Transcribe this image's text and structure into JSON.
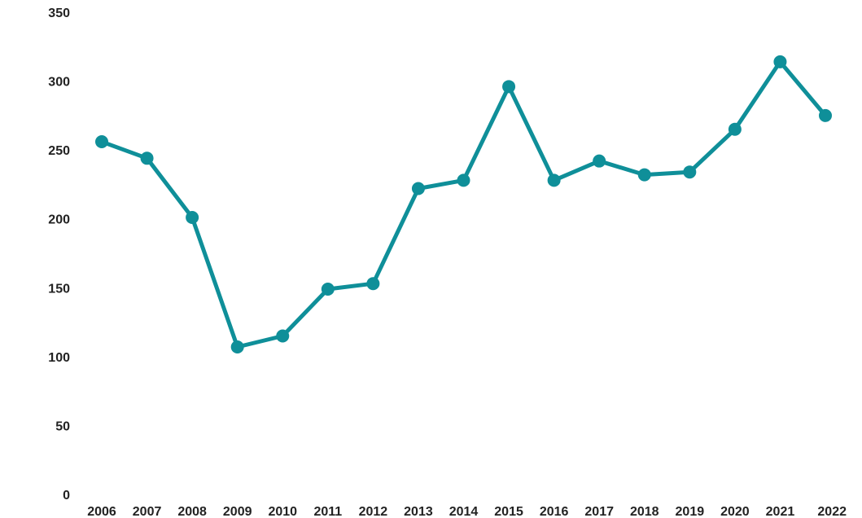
{
  "chart_data": {
    "type": "line",
    "title": "",
    "xlabel": "",
    "ylabel": "",
    "x": [
      "2006",
      "2007",
      "2008",
      "2009",
      "2010",
      "2011",
      "2012",
      "2013",
      "2014",
      "2015",
      "2016",
      "2017",
      "2018",
      "2019",
      "2020",
      "2021",
      "2022"
    ],
    "series": [
      {
        "values": [
          256,
          244,
          201,
          107,
          115,
          149,
          153,
          222,
          228,
          296,
          228,
          242,
          232,
          234,
          265,
          314,
          275
        ],
        "color": "#0F8F99"
      }
    ],
    "y_ticks": [
      "0",
      "50",
      "100",
      "150",
      "200",
      "250",
      "300",
      "350"
    ],
    "ylim": [
      0,
      350
    ],
    "grid": false,
    "legend": "none"
  }
}
